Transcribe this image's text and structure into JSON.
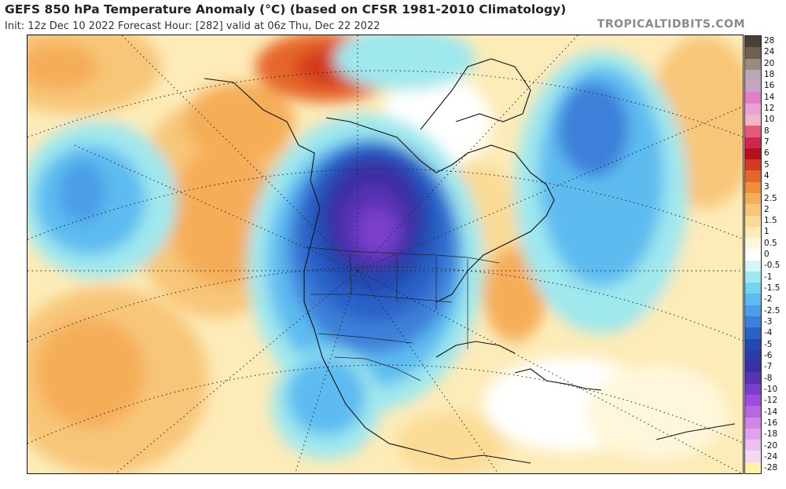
{
  "header": {
    "title": "GEFS 850 hPa Temperature Anomaly (°C) (based on CFSR 1981-2010 Climatology)",
    "subtitle": "Init: 12z Dec 10 2022   Forecast Hour: [282]   valid at 06z Thu, Dec 22 2022",
    "source": "TROPICALTIDBITS.COM"
  },
  "colorbar": {
    "levels": [
      {
        "label": "28",
        "color": "#4a3f33"
      },
      {
        "label": "24",
        "color": "#6e6050"
      },
      {
        "label": "20",
        "color": "#9a8c7c"
      },
      {
        "label": "18",
        "color": "#b6a9b6"
      },
      {
        "label": "16",
        "color": "#c9a3c4"
      },
      {
        "label": "14",
        "color": "#e27fc6"
      },
      {
        "label": "12",
        "color": "#eaa2d4"
      },
      {
        "label": "10",
        "color": "#f2b7c2"
      },
      {
        "label": "8",
        "color": "#e55a7a"
      },
      {
        "label": "7",
        "color": "#d1264a"
      },
      {
        "label": "6",
        "color": "#b3131a"
      },
      {
        "label": "5",
        "color": "#d33b1f"
      },
      {
        "label": "4",
        "color": "#e5662a"
      },
      {
        "label": "3",
        "color": "#ef8f3c"
      },
      {
        "label": "2.5",
        "color": "#f5ad58"
      },
      {
        "label": "2",
        "color": "#f8c678"
      },
      {
        "label": "1.5",
        "color": "#fbdb96"
      },
      {
        "label": "1",
        "color": "#fdebb8"
      },
      {
        "label": "0.5",
        "color": "#fff7dc"
      },
      {
        "label": "0",
        "color": "#ffffff"
      },
      {
        "label": "-0.5",
        "color": "#d6f5f7"
      },
      {
        "label": "-1",
        "color": "#9fe8ee"
      },
      {
        "label": "-1.5",
        "color": "#6fd6ec"
      },
      {
        "label": "-2",
        "color": "#5dbbf0"
      },
      {
        "label": "-2.5",
        "color": "#4c9fe6"
      },
      {
        "label": "-3",
        "color": "#3c80d9"
      },
      {
        "label": "-4",
        "color": "#2c62c8"
      },
      {
        "label": "-5",
        "color": "#2348b0"
      },
      {
        "label": "-6",
        "color": "#2b3da6"
      },
      {
        "label": "-7",
        "color": "#3a2fa3"
      },
      {
        "label": "-8",
        "color": "#5833b4"
      },
      {
        "label": "-10",
        "color": "#7a3fcc"
      },
      {
        "label": "-12",
        "color": "#9b4fdc"
      },
      {
        "label": "-14",
        "color": "#b767e3"
      },
      {
        "label": "-16",
        "color": "#cf86e6"
      },
      {
        "label": "-18",
        "color": "#e0a2ea"
      },
      {
        "label": "-20",
        "color": "#ecc0f0"
      },
      {
        "label": "-24",
        "color": "#f3d9f4"
      },
      {
        "label": "-28",
        "color": "#fff1a8"
      }
    ]
  }
}
